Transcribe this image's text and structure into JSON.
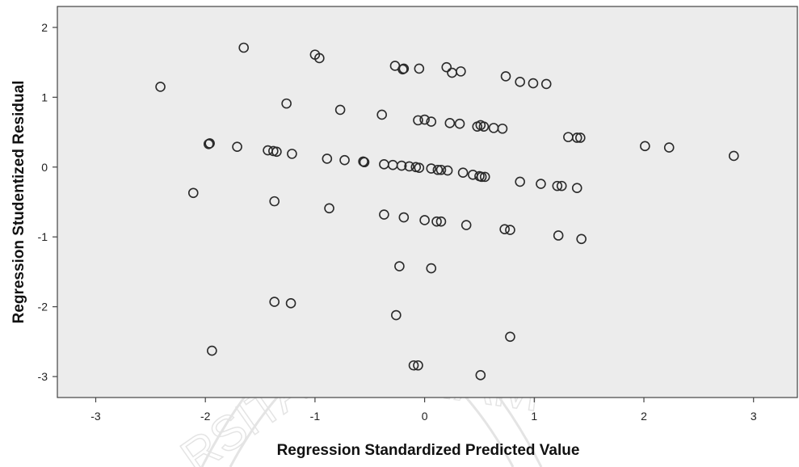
{
  "chart_data": {
    "type": "scatter",
    "xlabel": "Regression Standardized Predicted Value",
    "ylabel": "Regression Studentized Residual",
    "xlim": [
      -3.35,
      3.4
    ],
    "ylim": [
      -3.3,
      2.3
    ],
    "x_ticks": [
      -3,
      -2,
      -1,
      0,
      1,
      2,
      3
    ],
    "y_ticks": [
      2,
      1,
      0,
      -1,
      -2,
      -3
    ],
    "grid": false,
    "colors": {
      "plot_background": "#ececec",
      "marker": "#2a2a2a",
      "axis": "#444444"
    },
    "watermark": "UNIVERSITAS MUHAMMADIYAH seal",
    "points": [
      {
        "x": -2.41,
        "y": 1.15
      },
      {
        "x": -1.65,
        "y": 1.71
      },
      {
        "x": -1.0,
        "y": 1.61
      },
      {
        "x": -0.96,
        "y": 1.56
      },
      {
        "x": -1.26,
        "y": 0.91
      },
      {
        "x": -0.77,
        "y": 0.82
      },
      {
        "x": -0.39,
        "y": 0.75
      },
      {
        "x": -0.27,
        "y": 1.45
      },
      {
        "x": -0.19,
        "y": 1.41
      },
      {
        "x": -0.2,
        "y": 1.4
      },
      {
        "x": -0.05,
        "y": 1.41
      },
      {
        "x": 0.2,
        "y": 1.43
      },
      {
        "x": 0.25,
        "y": 1.35
      },
      {
        "x": 0.33,
        "y": 1.37
      },
      {
        "x": 0.74,
        "y": 1.3
      },
      {
        "x": 0.87,
        "y": 1.22
      },
      {
        "x": 0.99,
        "y": 1.2
      },
      {
        "x": 1.11,
        "y": 1.19
      },
      {
        "x": -0.06,
        "y": 0.67
      },
      {
        "x": 0.0,
        "y": 0.68
      },
      {
        "x": 0.06,
        "y": 0.65
      },
      {
        "x": 0.23,
        "y": 0.63
      },
      {
        "x": 0.32,
        "y": 0.62
      },
      {
        "x": 0.48,
        "y": 0.58
      },
      {
        "x": 0.51,
        "y": 0.6
      },
      {
        "x": 0.54,
        "y": 0.58
      },
      {
        "x": 0.63,
        "y": 0.56
      },
      {
        "x": 0.71,
        "y": 0.55
      },
      {
        "x": 1.31,
        "y": 0.43
      },
      {
        "x": 1.39,
        "y": 0.42
      },
      {
        "x": 1.42,
        "y": 0.42
      },
      {
        "x": 2.01,
        "y": 0.3
      },
      {
        "x": 2.23,
        "y": 0.28
      },
      {
        "x": 2.82,
        "y": 0.16
      },
      {
        "x": -1.96,
        "y": 0.34
      },
      {
        "x": -1.97,
        "y": 0.33
      },
      {
        "x": -1.71,
        "y": 0.29
      },
      {
        "x": -1.43,
        "y": 0.24
      },
      {
        "x": -1.38,
        "y": 0.23
      },
      {
        "x": -1.35,
        "y": 0.22
      },
      {
        "x": -1.21,
        "y": 0.19
      },
      {
        "x": -0.89,
        "y": 0.12
      },
      {
        "x": -0.73,
        "y": 0.1
      },
      {
        "x": -0.56,
        "y": 0.08
      },
      {
        "x": -0.55,
        "y": 0.07
      },
      {
        "x": -0.37,
        "y": 0.04
      },
      {
        "x": -0.29,
        "y": 0.03
      },
      {
        "x": -0.21,
        "y": 0.02
      },
      {
        "x": -0.14,
        "y": 0.01
      },
      {
        "x": -0.08,
        "y": 0.0
      },
      {
        "x": -0.05,
        "y": -0.01
      },
      {
        "x": 0.06,
        "y": -0.02
      },
      {
        "x": 0.12,
        "y": -0.04
      },
      {
        "x": 0.15,
        "y": -0.04
      },
      {
        "x": 0.21,
        "y": -0.05
      },
      {
        "x": 0.35,
        "y": -0.08
      },
      {
        "x": 0.44,
        "y": -0.11
      },
      {
        "x": 0.5,
        "y": -0.13
      },
      {
        "x": 0.52,
        "y": -0.14
      },
      {
        "x": 0.55,
        "y": -0.14
      },
      {
        "x": 0.87,
        "y": -0.21
      },
      {
        "x": 1.06,
        "y": -0.24
      },
      {
        "x": 1.21,
        "y": -0.27
      },
      {
        "x": 1.25,
        "y": -0.27
      },
      {
        "x": 1.39,
        "y": -0.3
      },
      {
        "x": -2.11,
        "y": -0.37
      },
      {
        "x": -1.37,
        "y": -0.49
      },
      {
        "x": -0.87,
        "y": -0.59
      },
      {
        "x": -0.37,
        "y": -0.68
      },
      {
        "x": -0.19,
        "y": -0.72
      },
      {
        "x": 0.0,
        "y": -0.76
      },
      {
        "x": 0.11,
        "y": -0.78
      },
      {
        "x": 0.15,
        "y": -0.78
      },
      {
        "x": 0.38,
        "y": -0.83
      },
      {
        "x": 0.73,
        "y": -0.89
      },
      {
        "x": 0.78,
        "y": -0.9
      },
      {
        "x": 1.22,
        "y": -0.98
      },
      {
        "x": 1.43,
        "y": -1.03
      },
      {
        "x": -0.23,
        "y": -1.42
      },
      {
        "x": 0.06,
        "y": -1.45
      },
      {
        "x": -1.37,
        "y": -1.93
      },
      {
        "x": -1.22,
        "y": -1.95
      },
      {
        "x": -0.26,
        "y": -2.12
      },
      {
        "x": 0.78,
        "y": -2.43
      },
      {
        "x": -1.94,
        "y": -2.63
      },
      {
        "x": -0.1,
        "y": -2.84
      },
      {
        "x": -0.06,
        "y": -2.84
      },
      {
        "x": 0.51,
        "y": -2.98
      }
    ]
  }
}
